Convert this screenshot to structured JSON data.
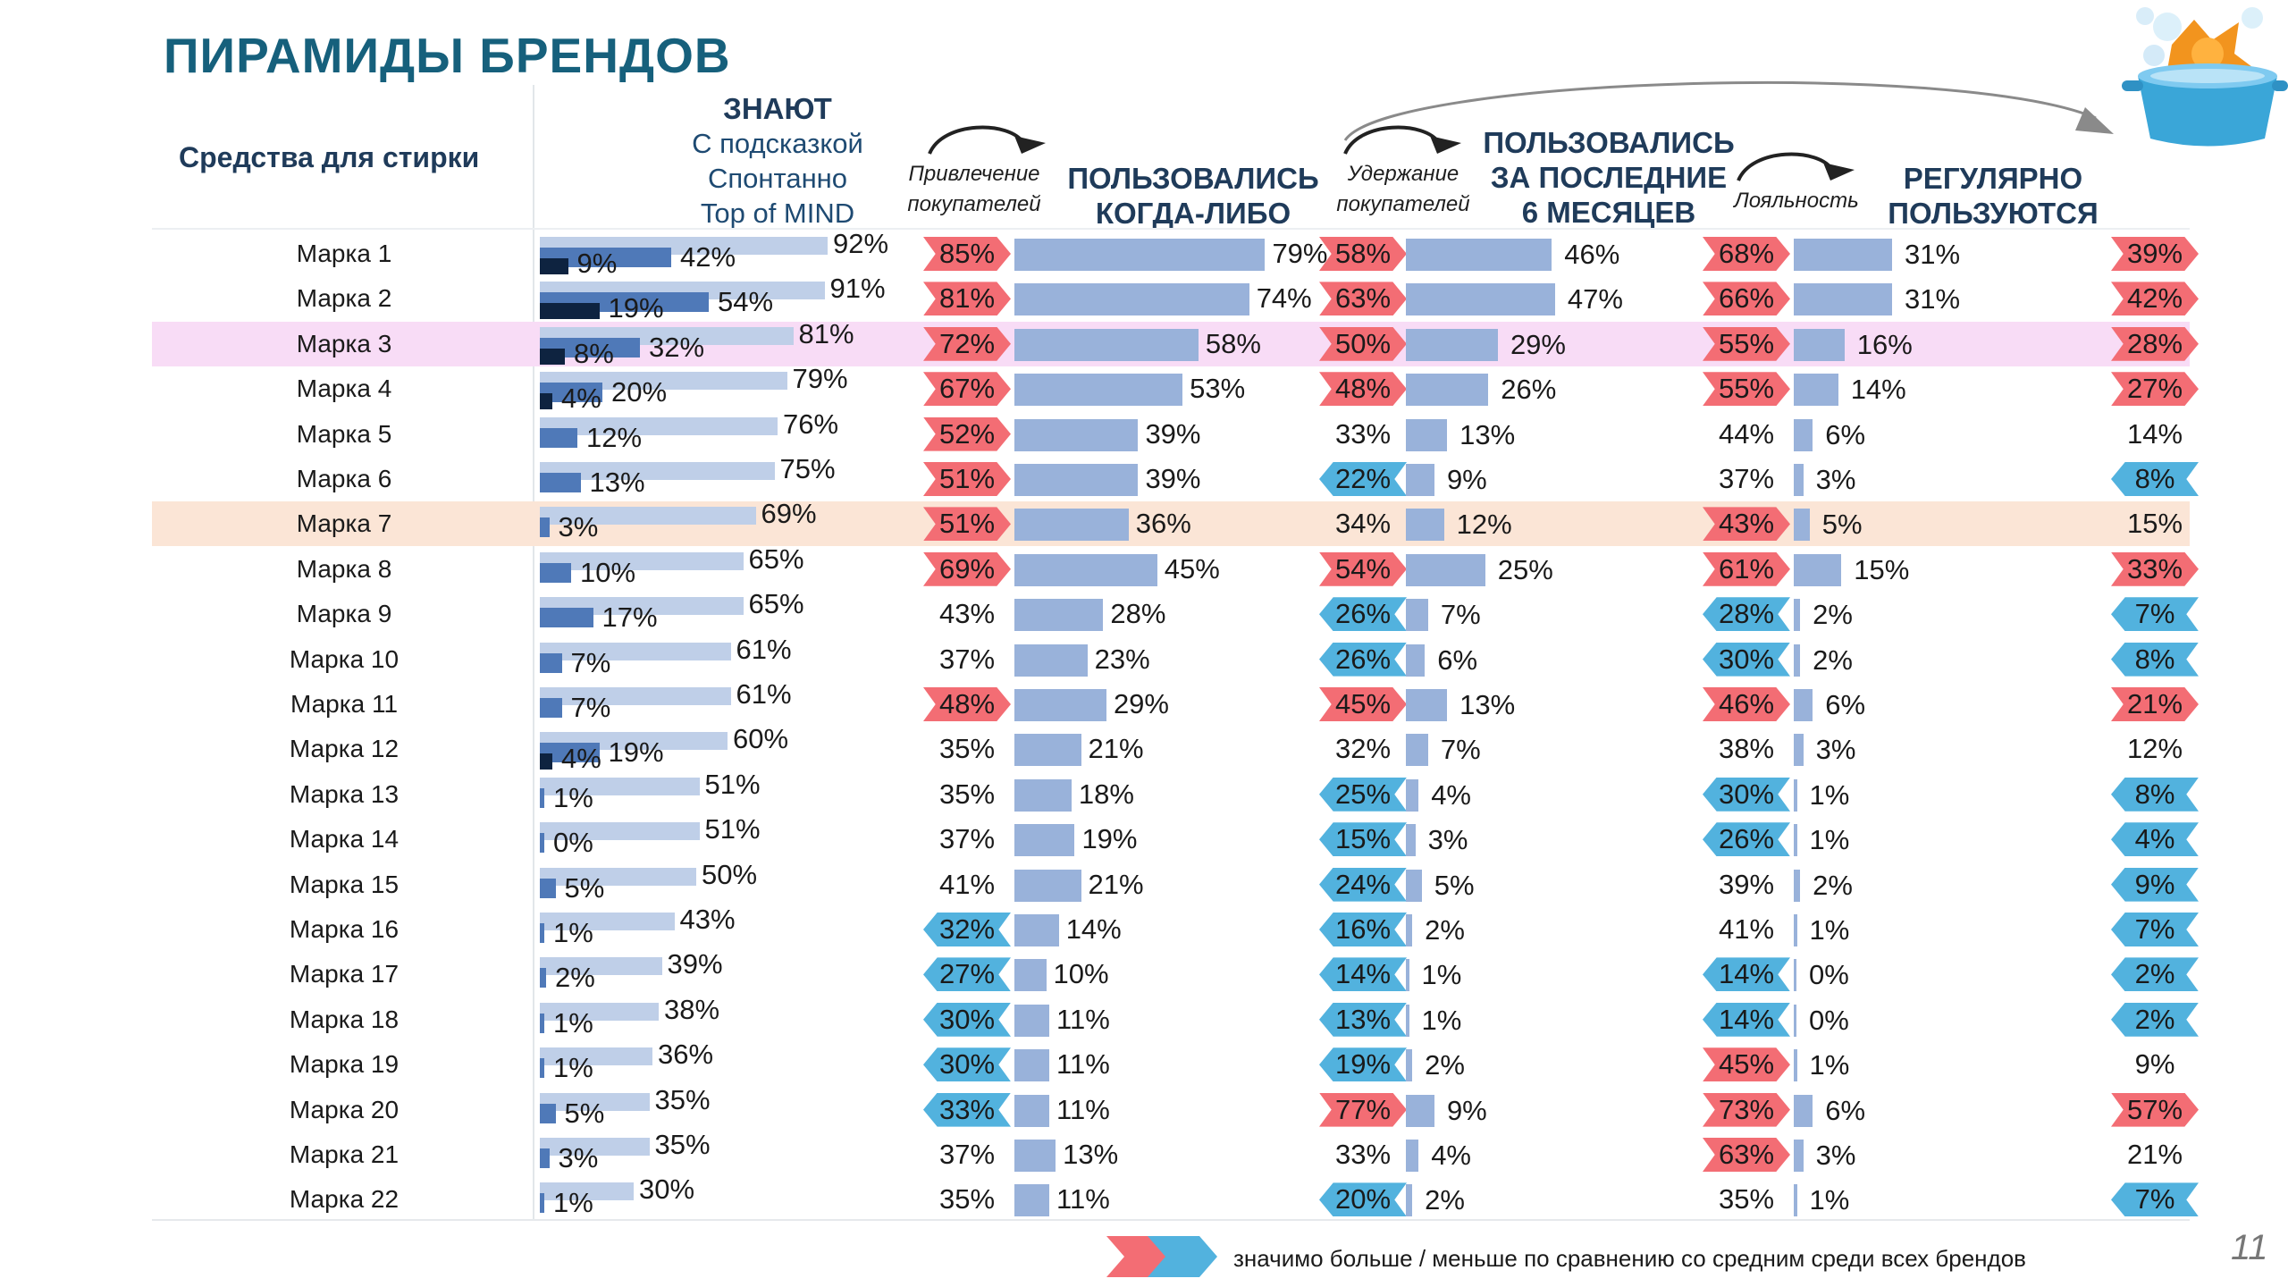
{
  "title": "ПИРАМИДЫ БРЕНДОВ",
  "category_label": "Средства для стирки",
  "headers": {
    "know_title": "ЗНАЮТ",
    "know_prompted": "С подсказкой",
    "know_spontaneous": "Спонтанно",
    "know_tom": "Top of MIND",
    "conv1": [
      "Привлечение",
      "покупателей"
    ],
    "ever": [
      "ПОЛЬЗОВАЛИСЬ",
      "КОГДА-ЛИБО"
    ],
    "conv2": [
      "Удержание",
      "покупателей"
    ],
    "last6": [
      "ПОЛЬЗОВАЛИСЬ",
      "ЗА ПОСЛЕДНИЕ",
      "6 МЕСЯЦЕВ"
    ],
    "conv3": "Лояльность",
    "regular": [
      "РЕГУЛЯРНО",
      "ПОЛЬЗУЮТСЯ"
    ]
  },
  "legend": "значимо больше / меньше по сравнению со средним среди всех брендов",
  "page_number": "11",
  "colors": {
    "prompted": "#bfcfe8",
    "spontaneous": "#4f79b8",
    "tom": "#0e2340",
    "usage": "#99b2da",
    "highlight_pink": "#f8dcf6",
    "highlight_peach": "#fbe5d6",
    "sig_higher": "#f36d74",
    "sig_lower": "#52b2de",
    "header_text": "#1f3b5a",
    "title": "#16607c"
  },
  "chart_data": {
    "type": "bar",
    "unit": "%",
    "highlighted_rows": {
      "Марка 3": "pink",
      "Марка 7": "peach"
    },
    "brands": [
      {
        "name": "Марка 1",
        "tom": 9,
        "spont": 42,
        "prompted": 92,
        "attr": {
          "v": 85,
          "s": "up"
        },
        "ever": 79,
        "ret": {
          "v": 58,
          "s": "up"
        },
        "last6": 46,
        "loy": {
          "v": 68,
          "s": "up"
        },
        "reg_bar": 31,
        "reg": {
          "v": 39,
          "s": "up"
        }
      },
      {
        "name": "Марка 2",
        "tom": 19,
        "spont": 54,
        "prompted": 91,
        "attr": {
          "v": 81,
          "s": "up"
        },
        "ever": 74,
        "ret": {
          "v": 63,
          "s": "up"
        },
        "last6": 47,
        "loy": {
          "v": 66,
          "s": "up"
        },
        "reg_bar": 31,
        "reg": {
          "v": 42,
          "s": "up"
        }
      },
      {
        "name": "Марка 3",
        "tom": 8,
        "spont": 32,
        "prompted": 81,
        "attr": {
          "v": 72,
          "s": "up"
        },
        "ever": 58,
        "ret": {
          "v": 50,
          "s": "up"
        },
        "last6": 29,
        "loy": {
          "v": 55,
          "s": "up"
        },
        "reg_bar": 16,
        "reg": {
          "v": 28,
          "s": "up"
        }
      },
      {
        "name": "Марка 4",
        "tom": 4,
        "spont": 20,
        "prompted": 79,
        "attr": {
          "v": 67,
          "s": "up"
        },
        "ever": 53,
        "ret": {
          "v": 48,
          "s": "up"
        },
        "last6": 26,
        "loy": {
          "v": 55,
          "s": "up"
        },
        "reg_bar": 14,
        "reg": {
          "v": 27,
          "s": "up"
        }
      },
      {
        "name": "Марка 5",
        "tom": null,
        "spont": 12,
        "prompted": 76,
        "attr": {
          "v": 52,
          "s": "up"
        },
        "ever": 39,
        "ret": {
          "v": 33,
          "s": ""
        },
        "last6": 13,
        "loy": {
          "v": 44,
          "s": ""
        },
        "reg_bar": 6,
        "reg": {
          "v": 14,
          "s": ""
        }
      },
      {
        "name": "Марка 6",
        "tom": null,
        "spont": 13,
        "prompted": 75,
        "attr": {
          "v": 51,
          "s": "up"
        },
        "ever": 39,
        "ret": {
          "v": 22,
          "s": "down"
        },
        "last6": 9,
        "loy": {
          "v": 37,
          "s": ""
        },
        "reg_bar": 3,
        "reg": {
          "v": 8,
          "s": "down"
        }
      },
      {
        "name": "Марка 7",
        "tom": null,
        "spont": 3,
        "prompted": 69,
        "attr": {
          "v": 51,
          "s": "up"
        },
        "ever": 36,
        "ret": {
          "v": 34,
          "s": ""
        },
        "last6": 12,
        "loy": {
          "v": 43,
          "s": "up"
        },
        "reg_bar": 5,
        "reg": {
          "v": 15,
          "s": ""
        }
      },
      {
        "name": "Марка 8",
        "tom": null,
        "spont": 10,
        "prompted": 65,
        "attr": {
          "v": 69,
          "s": "up"
        },
        "ever": 45,
        "ret": {
          "v": 54,
          "s": "up"
        },
        "last6": 25,
        "loy": {
          "v": 61,
          "s": "up"
        },
        "reg_bar": 15,
        "reg": {
          "v": 33,
          "s": "up"
        }
      },
      {
        "name": "Марка 9",
        "tom": null,
        "spont": 17,
        "prompted": 65,
        "attr": {
          "v": 43,
          "s": ""
        },
        "ever": 28,
        "ret": {
          "v": 26,
          "s": "down"
        },
        "last6": 7,
        "loy": {
          "v": 28,
          "s": "down"
        },
        "reg_bar": 2,
        "reg": {
          "v": 7,
          "s": "down"
        }
      },
      {
        "name": "Марка 10",
        "tom": null,
        "spont": 7,
        "prompted": 61,
        "attr": {
          "v": 37,
          "s": ""
        },
        "ever": 23,
        "ret": {
          "v": 26,
          "s": "down"
        },
        "last6": 6,
        "loy": {
          "v": 30,
          "s": "down"
        },
        "reg_bar": 2,
        "reg": {
          "v": 8,
          "s": "down"
        }
      },
      {
        "name": "Марка 11",
        "tom": null,
        "spont": 7,
        "prompted": 61,
        "attr": {
          "v": 48,
          "s": "up"
        },
        "ever": 29,
        "ret": {
          "v": 45,
          "s": "up"
        },
        "last6": 13,
        "loy": {
          "v": 46,
          "s": "up"
        },
        "reg_bar": 6,
        "reg": {
          "v": 21,
          "s": "up"
        }
      },
      {
        "name": "Марка 12",
        "tom": 4,
        "spont": 19,
        "prompted": 60,
        "attr": {
          "v": 35,
          "s": ""
        },
        "ever": 21,
        "ret": {
          "v": 32,
          "s": ""
        },
        "last6": 7,
        "loy": {
          "v": 38,
          "s": ""
        },
        "reg_bar": 3,
        "reg": {
          "v": 12,
          "s": ""
        }
      },
      {
        "name": "Марка 13",
        "tom": null,
        "spont": 1,
        "prompted": 51,
        "attr": {
          "v": 35,
          "s": ""
        },
        "ever": 18,
        "ret": {
          "v": 25,
          "s": "down"
        },
        "last6": 4,
        "loy": {
          "v": 30,
          "s": "down"
        },
        "reg_bar": 1,
        "reg": {
          "v": 8,
          "s": "down"
        }
      },
      {
        "name": "Марка 14",
        "tom": null,
        "spont": 0,
        "prompted": 51,
        "attr": {
          "v": 37,
          "s": ""
        },
        "ever": 19,
        "ret": {
          "v": 15,
          "s": "down"
        },
        "last6": 3,
        "loy": {
          "v": 26,
          "s": "down"
        },
        "reg_bar": 1,
        "reg": {
          "v": 4,
          "s": "down"
        }
      },
      {
        "name": "Марка 15",
        "tom": null,
        "spont": 5,
        "prompted": 50,
        "attr": {
          "v": 41,
          "s": ""
        },
        "ever": 21,
        "ret": {
          "v": 24,
          "s": "down"
        },
        "last6": 5,
        "loy": {
          "v": 39,
          "s": ""
        },
        "reg_bar": 2,
        "reg": {
          "v": 9,
          "s": "down"
        }
      },
      {
        "name": "Марка 16",
        "tom": null,
        "spont": 1,
        "prompted": 43,
        "attr": {
          "v": 32,
          "s": "down"
        },
        "ever": 14,
        "ret": {
          "v": 16,
          "s": "down"
        },
        "last6": 2,
        "loy": {
          "v": 41,
          "s": ""
        },
        "reg_bar": 1,
        "reg": {
          "v": 7,
          "s": "down"
        }
      },
      {
        "name": "Марка 17",
        "tom": null,
        "spont": 2,
        "prompted": 39,
        "attr": {
          "v": 27,
          "s": "down"
        },
        "ever": 10,
        "ret": {
          "v": 14,
          "s": "down"
        },
        "last6": 1,
        "loy": {
          "v": 14,
          "s": "down"
        },
        "reg_bar": 0,
        "reg": {
          "v": 2,
          "s": "down"
        }
      },
      {
        "name": "Марка 18",
        "tom": null,
        "spont": 1,
        "prompted": 38,
        "attr": {
          "v": 30,
          "s": "down"
        },
        "ever": 11,
        "ret": {
          "v": 13,
          "s": "down"
        },
        "last6": 1,
        "loy": {
          "v": 14,
          "s": "down"
        },
        "reg_bar": 0,
        "reg": {
          "v": 2,
          "s": "down"
        }
      },
      {
        "name": "Марка 19",
        "tom": null,
        "spont": 1,
        "prompted": 36,
        "attr": {
          "v": 30,
          "s": "down"
        },
        "ever": 11,
        "ret": {
          "v": 19,
          "s": "down"
        },
        "last6": 2,
        "loy": {
          "v": 45,
          "s": "up"
        },
        "reg_bar": 1,
        "reg": {
          "v": 9,
          "s": ""
        }
      },
      {
        "name": "Марка 20",
        "tom": null,
        "spont": 5,
        "prompted": 35,
        "attr": {
          "v": 33,
          "s": "down"
        },
        "ever": 11,
        "ret": {
          "v": 77,
          "s": "up"
        },
        "last6": 9,
        "loy": {
          "v": 73,
          "s": "up"
        },
        "reg_bar": 6,
        "reg": {
          "v": 57,
          "s": "up"
        }
      },
      {
        "name": "Марка 21",
        "tom": null,
        "spont": 3,
        "prompted": 35,
        "attr": {
          "v": 37,
          "s": ""
        },
        "ever": 13,
        "ret": {
          "v": 33,
          "s": ""
        },
        "last6": 4,
        "loy": {
          "v": 63,
          "s": "up"
        },
        "reg_bar": 3,
        "reg": {
          "v": 21,
          "s": ""
        }
      },
      {
        "name": "Марка 22",
        "tom": null,
        "spont": 1,
        "prompted": 30,
        "attr": {
          "v": 35,
          "s": ""
        },
        "ever": 11,
        "ret": {
          "v": 20,
          "s": "down"
        },
        "last6": 2,
        "loy": {
          "v": 35,
          "s": ""
        },
        "reg_bar": 1,
        "reg": {
          "v": 7,
          "s": "down"
        }
      }
    ]
  }
}
